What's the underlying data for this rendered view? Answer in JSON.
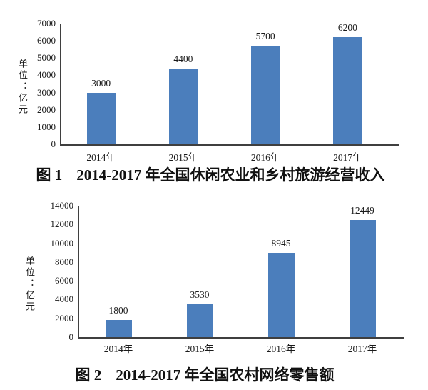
{
  "figure": {
    "background": "#ffffff",
    "bar_color": "#4b7ebc",
    "axis_color": "#3f3f3f",
    "text_color": "#1b1b1b"
  },
  "chart_data": [
    {
      "type": "bar",
      "fig_label": "图 1",
      "title": "2014-2017 年全国休闲农业和乡村旅游经营收入",
      "full_title": "图 1  2014-2017 年全国休闲农业和乡村旅游经营收入",
      "ylabel": "单位：亿元",
      "categories": [
        "2014年",
        "2015年",
        "2016年",
        "2017年"
      ],
      "values": [
        3000,
        4400,
        5700,
        6200
      ],
      "ylim": [
        0,
        7000
      ],
      "yticks": [
        0,
        1000,
        2000,
        3000,
        4000,
        5000,
        6000,
        7000
      ],
      "bar_color": "#4b7ebc",
      "grid": false,
      "legend": "none"
    },
    {
      "type": "bar",
      "fig_label": "图 2",
      "title": "2014-2017 年全国农村网络零售额",
      "full_title": "图 2  2014-2017 年全国农村网络零售额",
      "ylabel": "单位：亿元",
      "categories": [
        "2014年",
        "2015年",
        "2016年",
        "2017年"
      ],
      "values": [
        1800,
        3530,
        8945,
        12449
      ],
      "ylim": [
        0,
        14000
      ],
      "yticks": [
        0,
        2000,
        4000,
        6000,
        8000,
        10000,
        12000,
        14000
      ],
      "bar_color": "#4b7ebc",
      "grid": false,
      "legend": "none"
    }
  ]
}
